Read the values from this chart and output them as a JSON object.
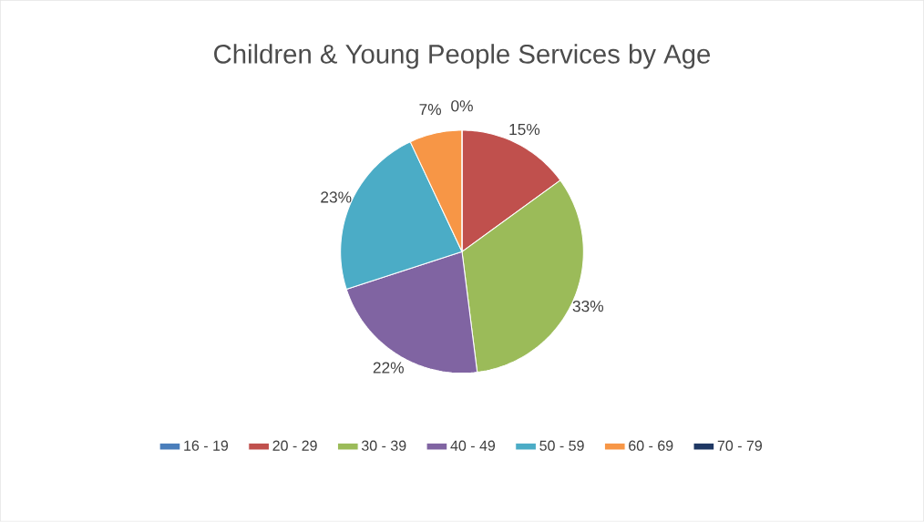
{
  "chart_data": {
    "type": "pie",
    "title": "Children & Young People Services by Age",
    "categories": [
      "16 - 19",
      "20 - 29",
      "30 - 39",
      "40 - 49",
      "50 - 59",
      "60 - 69",
      "70 - 79"
    ],
    "values": [
      0,
      15,
      33,
      22,
      23,
      7,
      0
    ],
    "value_labels": [
      "0%",
      "15%",
      "33%",
      "22%",
      "23%",
      "7%",
      null
    ],
    "colors": [
      "#4a7ebb",
      "#c0504d",
      "#9bbb59",
      "#8064a2",
      "#4bacc6",
      "#f79646",
      "#1f3864"
    ],
    "legend": "bottom"
  }
}
